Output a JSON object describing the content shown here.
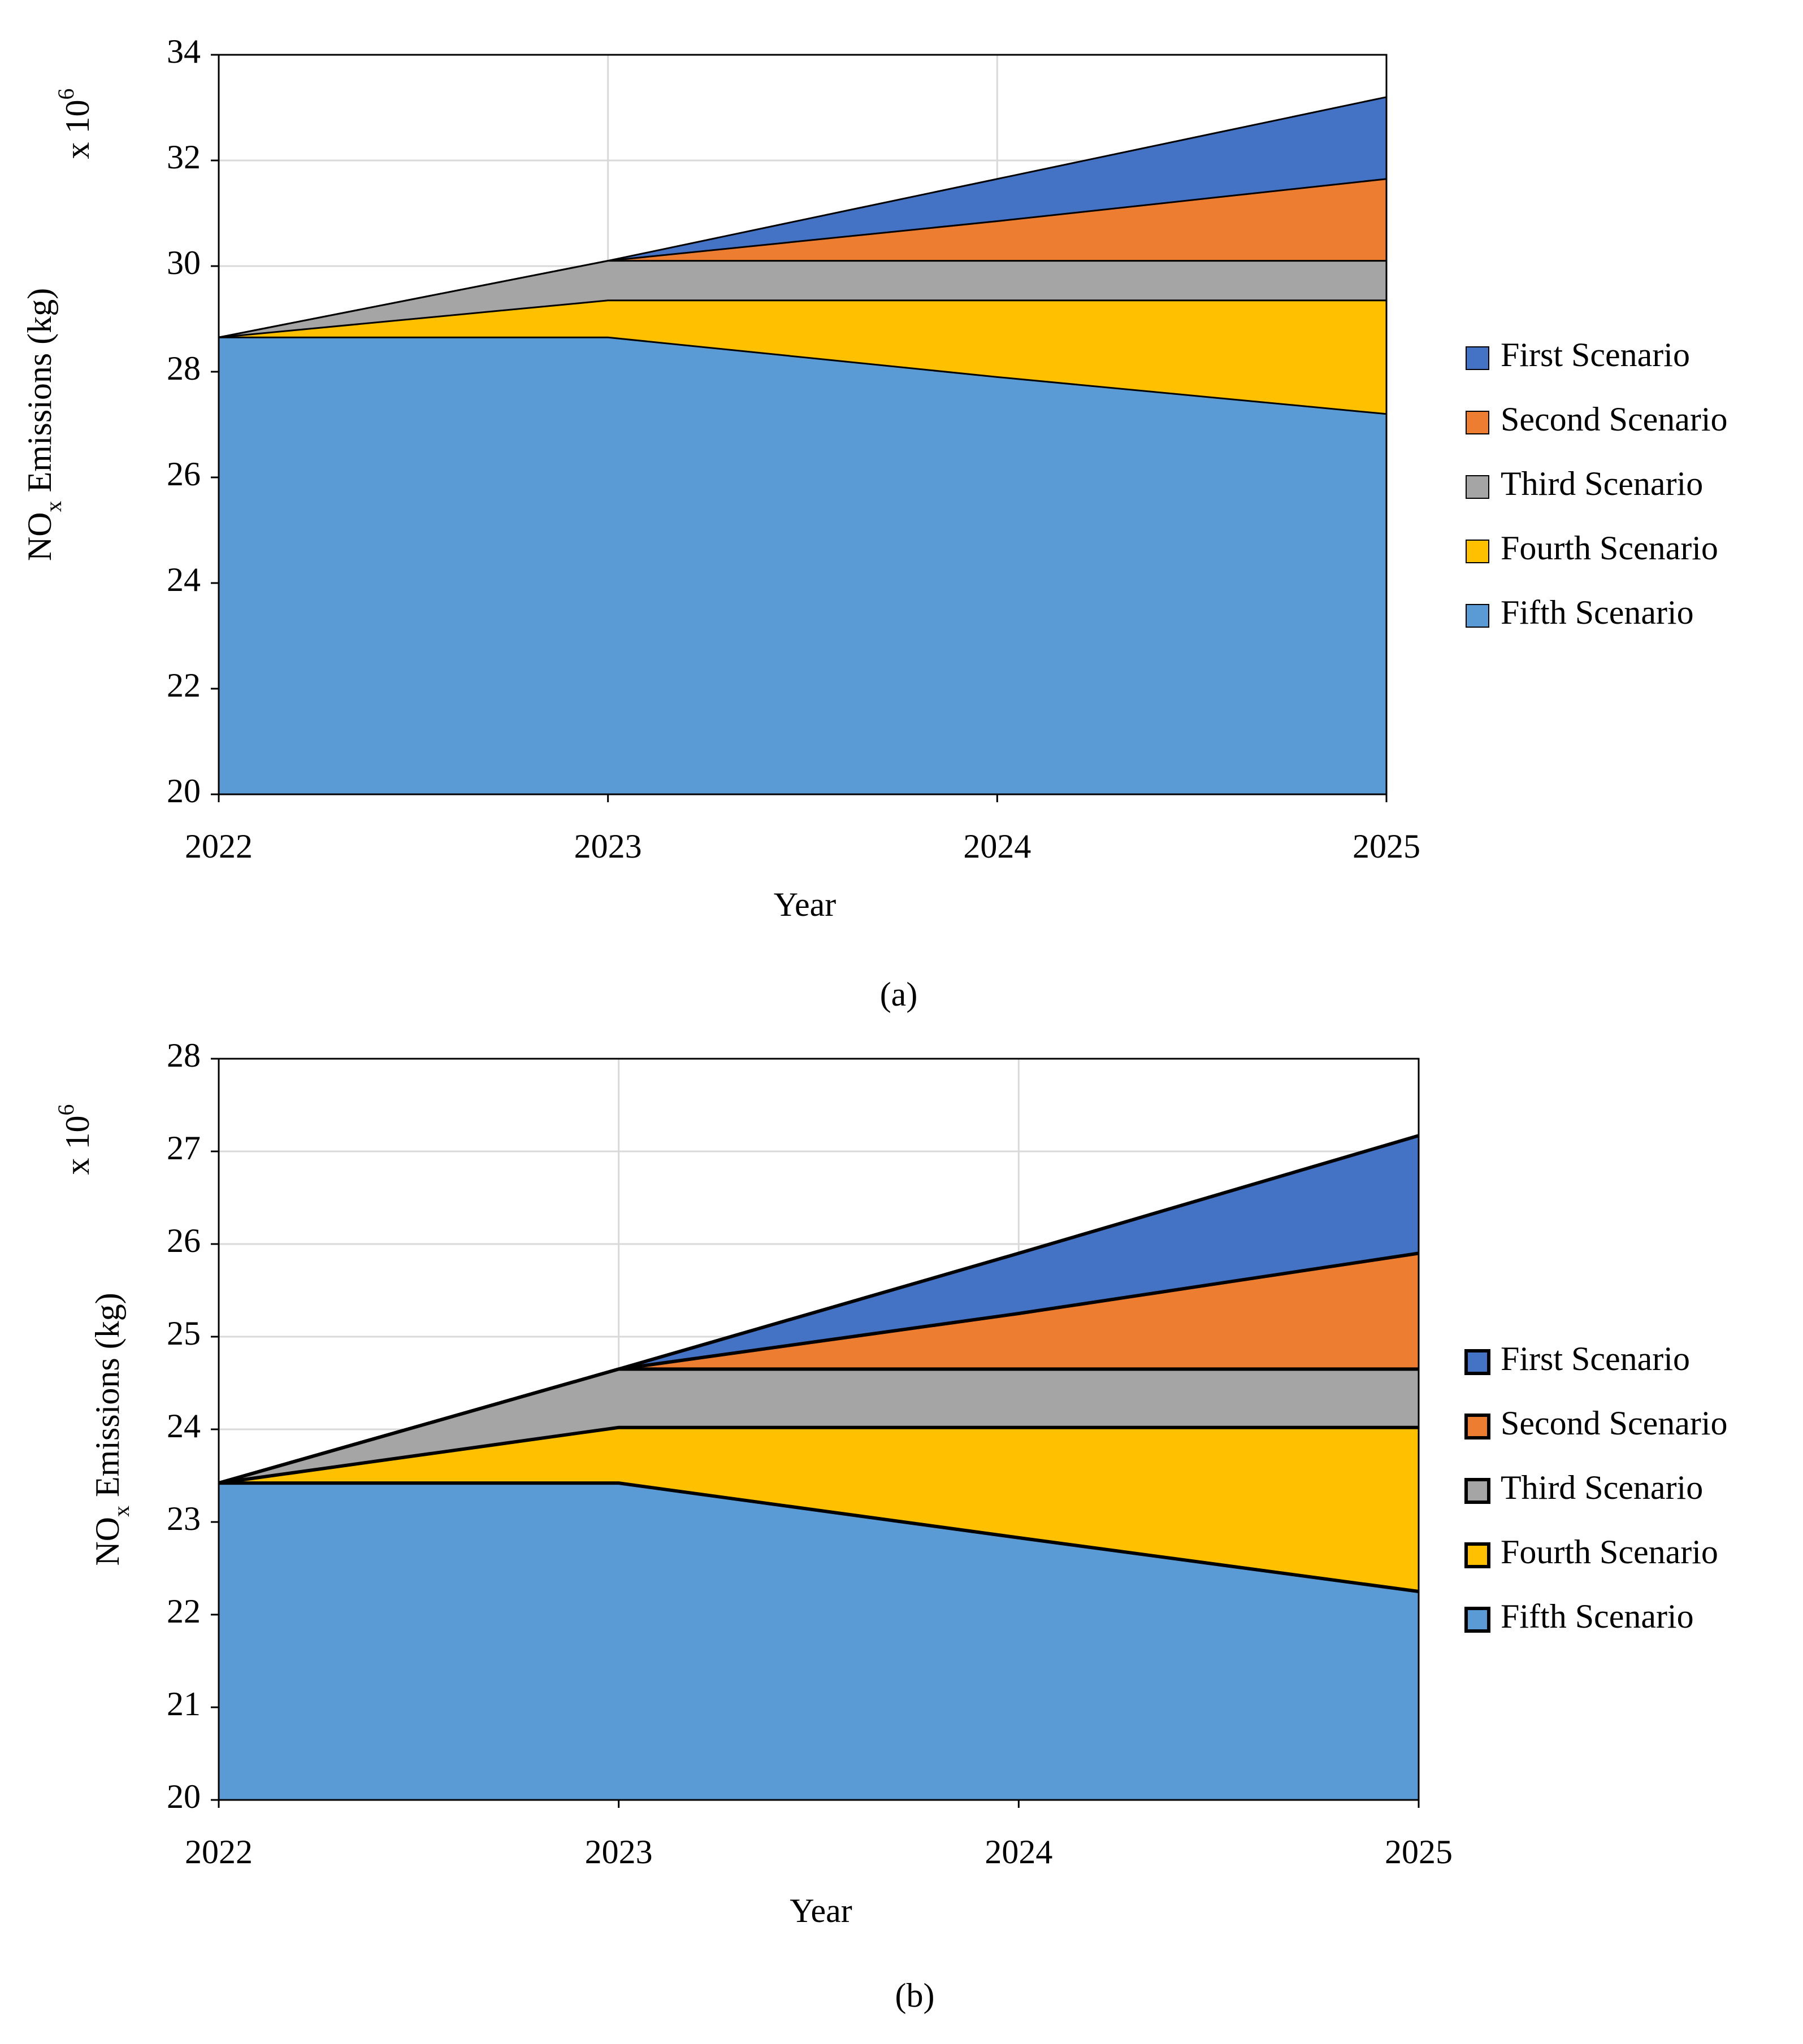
{
  "chart_data": [
    {
      "type": "area",
      "panel_label": "(a)",
      "x_label": "Year",
      "y_label": {
        "main": "NO",
        "sub": "x",
        "rest": " Emissions (kg)"
      },
      "multiplier": {
        "base": "x 10",
        "exponent": "6"
      },
      "categories": [
        "2022",
        "2023",
        "2024",
        "2025"
      ],
      "ylim": [
        20,
        34
      ],
      "yticks": [
        20,
        22,
        24,
        26,
        28,
        30,
        32,
        34
      ],
      "grid": true,
      "legend": "right",
      "series": [
        {
          "name": "First Scenario",
          "color": "#4472c4",
          "values": [
            28.65,
            30.1,
            31.65,
            33.2
          ]
        },
        {
          "name": "Second Scenario",
          "color": "#ed7d31",
          "values": [
            28.65,
            30.1,
            30.85,
            31.65
          ]
        },
        {
          "name": "Third Scenario",
          "color": "#a5a5a5",
          "values": [
            28.65,
            30.1,
            30.1,
            30.1
          ]
        },
        {
          "name": "Fourth Scenario",
          "color": "#ffc000",
          "values": [
            28.65,
            29.35,
            29.35,
            29.35
          ]
        },
        {
          "name": "Fifth Scenario",
          "color": "#5b9bd5",
          "values": [
            28.65,
            28.65,
            27.9,
            27.2
          ]
        }
      ]
    },
    {
      "type": "area",
      "panel_label": "(b)",
      "x_label": "Year",
      "y_label": {
        "main": "NO",
        "sub": "x",
        "rest": " Emissions (kg)"
      },
      "multiplier": {
        "base": "x 10",
        "exponent": "6"
      },
      "categories": [
        "2022",
        "2023",
        "2024",
        "2025"
      ],
      "ylim": [
        20,
        28
      ],
      "yticks": [
        20,
        21,
        22,
        23,
        24,
        25,
        26,
        27,
        28
      ],
      "grid": true,
      "legend": "right",
      "series": [
        {
          "name": "First Scenario",
          "color": "#4472c4",
          "values": [
            23.42,
            24.65,
            25.9,
            27.17
          ]
        },
        {
          "name": "Second Scenario",
          "color": "#ed7d31",
          "values": [
            23.42,
            24.65,
            25.25,
            25.9
          ]
        },
        {
          "name": "Third Scenario",
          "color": "#a5a5a5",
          "values": [
            23.42,
            24.65,
            24.65,
            24.65
          ]
        },
        {
          "name": "Fourth Scenario",
          "color": "#ffc000",
          "values": [
            23.42,
            24.02,
            24.02,
            24.02
          ]
        },
        {
          "name": "Fifth Scenario",
          "color": "#5b9bd5",
          "values": [
            23.42,
            23.42,
            22.83,
            22.25
          ]
        }
      ]
    }
  ]
}
